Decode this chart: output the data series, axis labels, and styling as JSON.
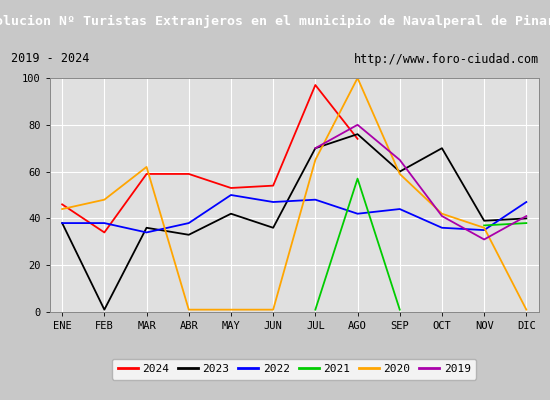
{
  "title": "Evolucion Nº Turistas Extranjeros en el municipio de Navalperal de Pinares",
  "subtitle_left": "2019 - 2024",
  "subtitle_right": "http://www.foro-ciudad.com",
  "months": [
    "ENE",
    "FEB",
    "MAR",
    "ABR",
    "MAY",
    "JUN",
    "JUL",
    "AGO",
    "SEP",
    "OCT",
    "NOV",
    "DIC"
  ],
  "series": {
    "2024": {
      "color": "#ff0000",
      "data": [
        46,
        34,
        59,
        59,
        53,
        54,
        97,
        74,
        null,
        null,
        null,
        null
      ]
    },
    "2023": {
      "color": "#000000",
      "data": [
        38,
        1,
        36,
        33,
        42,
        36,
        70,
        76,
        60,
        70,
        39,
        40
      ]
    },
    "2022": {
      "color": "#0000ff",
      "data": [
        38,
        38,
        34,
        38,
        50,
        47,
        48,
        42,
        44,
        36,
        35,
        47
      ]
    },
    "2021": {
      "color": "#00cc00",
      "data": [
        null,
        null,
        null,
        null,
        null,
        null,
        1,
        57,
        1,
        null,
        37,
        38
      ]
    },
    "2020": {
      "color": "#ffa500",
      "data": [
        44,
        48,
        62,
        1,
        1,
        1,
        65,
        100,
        59,
        42,
        36,
        1
      ]
    },
    "2019": {
      "color": "#aa00aa",
      "data": [
        null,
        null,
        null,
        null,
        null,
        null,
        70,
        80,
        65,
        41,
        31,
        41
      ]
    }
  },
  "ylim": [
    0,
    100
  ],
  "yticks": [
    0,
    20,
    40,
    60,
    80,
    100
  ],
  "title_bg": "#1a6fc4",
  "title_color": "#ffffff",
  "title_fontsize": 9.5,
  "subtitle_fontsize": 8.5,
  "plot_bg": "#e0e0e0",
  "grid_color": "#ffffff",
  "fig_bg": "#c8c8c8",
  "legend_order": [
    "2024",
    "2023",
    "2022",
    "2021",
    "2020",
    "2019"
  ]
}
